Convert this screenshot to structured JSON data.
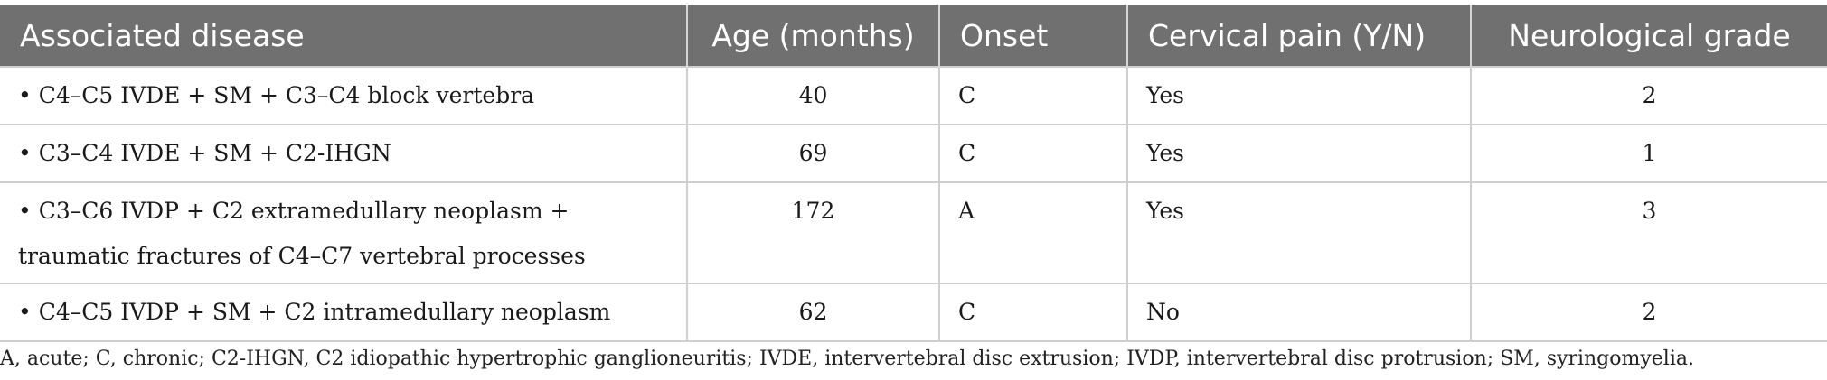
{
  "table": {
    "headers": [
      "Associated disease",
      "Age (months)",
      "Onset",
      "Cervical pain (Y/N)",
      "Neurological grade"
    ],
    "rows": [
      {
        "disease": "• C4–C5 IVDE + SM + C3–C4 block vertebra",
        "age": "40",
        "onset": "C",
        "pain": "Yes",
        "grade": "2"
      },
      {
        "disease": "• C3–C4 IVDE + SM + C2-IHGN",
        "age": "69",
        "onset": "C",
        "pain": "Yes",
        "grade": "1"
      },
      {
        "disease": "• C3–C6 IVDP + C2 extramedullary neoplasm + traumatic fractures of C4–C7 vertebral processes",
        "age": "172",
        "onset": "A",
        "pain": "Yes",
        "grade": "3"
      },
      {
        "disease": "• C4–C5 IVDP + SM + C2 intramedullary neoplasm",
        "age": "62",
        "onset": "C",
        "pain": "No",
        "grade": "2"
      }
    ]
  },
  "footnote": "A, acute; C, chronic; C2-IHGN, C2 idiopathic hypertrophic ganglioneuritis; IVDE, intervertebral disc extrusion; IVDP, intervertebral disc protrusion; SM, syringomyelia.",
  "colors": {
    "header_background": "#707070",
    "header_text": "#ffffff",
    "grid_lines": "#cfcfcf"
  }
}
